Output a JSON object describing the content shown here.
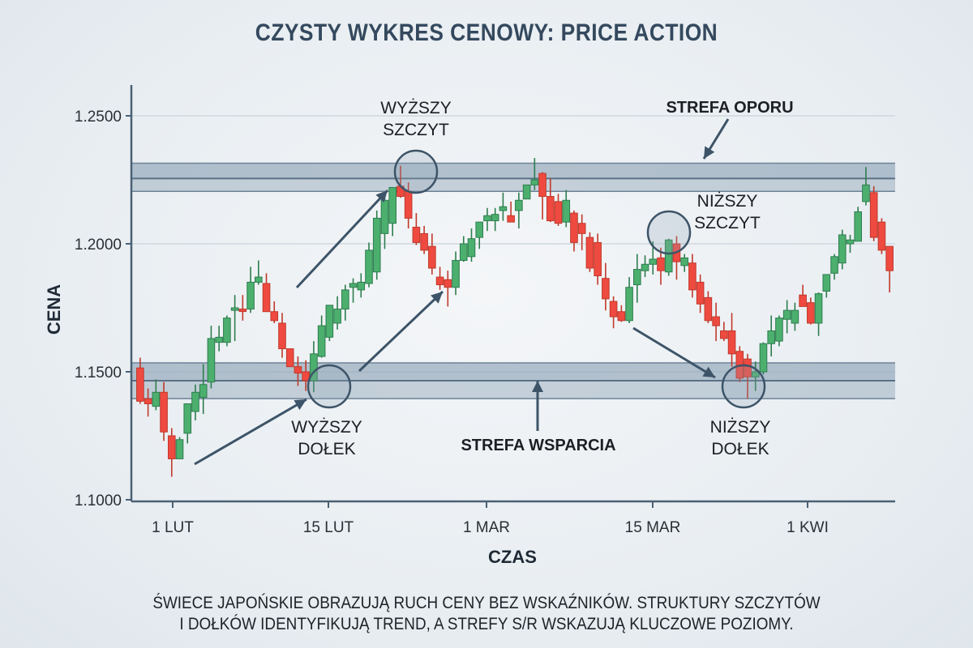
{
  "title": "CZYSTY WYKRES CENOWY: PRICE ACTION",
  "caption": {
    "line1": "ŚWIECE JAPOŃSKIE OBRAZUJĄ RUCH CENY BEZ WSKAŹNIKÓW. STRUKTURY SZCZYTÓW",
    "line2": "I DOŁKÓW IDENTYFIKUJĄ TREND, A STREFY S/R WSKAZUJĄ KLUCZOWE POZIOMY."
  },
  "colors": {
    "bullish": "#4caf6e",
    "bullish_border": "#2e7d4f",
    "bearish": "#ef4a40",
    "bearish_border": "#c0392b",
    "axis": "#4a6074",
    "zone": "#8fa3b6",
    "annotation": "#3d5468",
    "title": "#34495e"
  },
  "chart_data": {
    "type": "candlestick",
    "title": "CZYSTY WYKRES CENOWY: PRICE ACTION",
    "xlabel": "CZAS",
    "ylabel": "CENA",
    "ylim": [
      1.1,
      1.26
    ],
    "yticks": [
      "1.1000",
      "1.1500",
      "1.2000",
      "1.2500"
    ],
    "ytick_values": [
      1.1,
      1.15,
      1.2,
      1.25
    ],
    "xticks": [
      "1 LUT",
      "15 LUT",
      "1 MAR",
      "15 MAR",
      "1 KWI"
    ],
    "grid": true,
    "zones": [
      {
        "name": "STREFA OPORU",
        "type": "resistance",
        "low": 1.2205,
        "high": 1.2315,
        "mid": 1.2255
      },
      {
        "name": "STREFA WSPARCIA",
        "type": "support",
        "low": 1.1395,
        "high": 1.1535,
        "mid": 1.1465
      }
    ],
    "annotations": [
      {
        "label": "WYŻSZY SZCZYT",
        "price": 1.229
      },
      {
        "label": "WYŻSZY DOŁEK",
        "price": 1.1445
      },
      {
        "label": "NIŻSZY SZCZYT",
        "price": 1.2045
      },
      {
        "label": "NIŻSZY DOŁEK",
        "price": 1.1445
      },
      {
        "label": "STREFA OPORU"
      },
      {
        "label": "STREFA WSPARCIA"
      }
    ],
    "candles": [
      {
        "o": 1.1515,
        "h": 1.1555,
        "l": 1.1375,
        "c": 1.1385
      },
      {
        "o": 1.1395,
        "h": 1.1435,
        "l": 1.1325,
        "c": 1.1375
      },
      {
        "o": 1.1365,
        "h": 1.147,
        "l": 1.135,
        "c": 1.142
      },
      {
        "o": 1.142,
        "h": 1.146,
        "l": 1.123,
        "c": 1.1265
      },
      {
        "o": 1.125,
        "h": 1.128,
        "l": 1.109,
        "c": 1.116
      },
      {
        "o": 1.116,
        "h": 1.1245,
        "l": 1.116,
        "c": 1.1235
      },
      {
        "o": 1.126,
        "h": 1.137,
        "l": 1.122,
        "c": 1.1375
      },
      {
        "o": 1.1345,
        "h": 1.145,
        "l": 1.131,
        "c": 1.142
      },
      {
        "o": 1.14,
        "h": 1.153,
        "l": 1.1335,
        "c": 1.145
      },
      {
        "o": 1.146,
        "h": 1.168,
        "l": 1.1435,
        "c": 1.163
      },
      {
        "o": 1.1615,
        "h": 1.168,
        "l": 1.158,
        "c": 1.1635
      },
      {
        "o": 1.1615,
        "h": 1.172,
        "l": 1.16,
        "c": 1.171
      },
      {
        "o": 1.174,
        "h": 1.18,
        "l": 1.162,
        "c": 1.175
      },
      {
        "o": 1.1745,
        "h": 1.18,
        "l": 1.17,
        "c": 1.174
      },
      {
        "o": 1.1745,
        "h": 1.191,
        "l": 1.173,
        "c": 1.185
      },
      {
        "o": 1.185,
        "h": 1.1935,
        "l": 1.184,
        "c": 1.187
      },
      {
        "o": 1.1845,
        "h": 1.1885,
        "l": 1.174,
        "c": 1.1735
      },
      {
        "o": 1.1735,
        "h": 1.1775,
        "l": 1.169,
        "c": 1.17
      },
      {
        "o": 1.169,
        "h": 1.173,
        "l": 1.1555,
        "c": 1.159
      },
      {
        "o": 1.159,
        "h": 1.158,
        "l": 1.153,
        "c": 1.152
      },
      {
        "o": 1.152,
        "h": 1.156,
        "l": 1.1445,
        "c": 1.1495
      },
      {
        "o": 1.15,
        "h": 1.1545,
        "l": 1.1425,
        "c": 1.1465
      },
      {
        "o": 1.1465,
        "h": 1.162,
        "l": 1.142,
        "c": 1.157
      },
      {
        "o": 1.156,
        "h": 1.172,
        "l": 1.1555,
        "c": 1.168
      },
      {
        "o": 1.1635,
        "h": 1.1755,
        "l": 1.162,
        "c": 1.176
      },
      {
        "o": 1.169,
        "h": 1.1795,
        "l": 1.1665,
        "c": 1.1745
      },
      {
        "o": 1.1745,
        "h": 1.184,
        "l": 1.17,
        "c": 1.182
      },
      {
        "o": 1.183,
        "h": 1.1865,
        "l": 1.177,
        "c": 1.1845
      },
      {
        "o": 1.182,
        "h": 1.1885,
        "l": 1.179,
        "c": 1.185
      },
      {
        "o": 1.1845,
        "h": 1.2005,
        "l": 1.183,
        "c": 1.1975
      },
      {
        "o": 1.189,
        "h": 1.213,
        "l": 1.186,
        "c": 1.21
      },
      {
        "o": 1.204,
        "h": 1.2195,
        "l": 1.198,
        "c": 1.217
      },
      {
        "o": 1.208,
        "h": 1.221,
        "l": 1.203,
        "c": 1.222
      },
      {
        "o": 1.2225,
        "h": 1.2305,
        "l": 1.218,
        "c": 1.2185
      },
      {
        "o": 1.2205,
        "h": 1.224,
        "l": 1.206,
        "c": 1.21
      },
      {
        "o": 1.2065,
        "h": 1.212,
        "l": 1.1995,
        "c": 1.2005
      },
      {
        "o": 1.204,
        "h": 1.207,
        "l": 1.196,
        "c": 1.1975
      },
      {
        "o": 1.199,
        "h": 1.204,
        "l": 1.188,
        "c": 1.1905
      },
      {
        "o": 1.187,
        "h": 1.191,
        "l": 1.182,
        "c": 1.184
      },
      {
        "o": 1.186,
        "h": 1.1895,
        "l": 1.1755,
        "c": 1.183
      },
      {
        "o": 1.183,
        "h": 1.197,
        "l": 1.18,
        "c": 1.1935
      },
      {
        "o": 1.1935,
        "h": 1.203,
        "l": 1.193,
        "c": 1.2
      },
      {
        "o": 1.195,
        "h": 1.206,
        "l": 1.193,
        "c": 1.202
      },
      {
        "o": 1.2025,
        "h": 1.208,
        "l": 1.198,
        "c": 1.2085
      },
      {
        "o": 1.209,
        "h": 1.214,
        "l": 1.205,
        "c": 1.211
      },
      {
        "o": 1.209,
        "h": 1.214,
        "l": 1.205,
        "c": 1.2115
      },
      {
        "o": 1.213,
        "h": 1.22,
        "l": 1.209,
        "c": 1.2145
      },
      {
        "o": 1.211,
        "h": 1.2165,
        "l": 1.209,
        "c": 1.2085
      },
      {
        "o": 1.213,
        "h": 1.22,
        "l": 1.206,
        "c": 1.217
      },
      {
        "o": 1.2175,
        "h": 1.223,
        "l": 1.22,
        "c": 1.223
      },
      {
        "o": 1.223,
        "h": 1.2335,
        "l": 1.221,
        "c": 1.225
      },
      {
        "o": 1.2275,
        "h": 1.228,
        "l": 1.2095,
        "c": 1.2185
      },
      {
        "o": 1.2185,
        "h": 1.2255,
        "l": 1.2085,
        "c": 1.209
      },
      {
        "o": 1.2165,
        "h": 1.2195,
        "l": 1.207,
        "c": 1.208
      },
      {
        "o": 1.2085,
        "h": 1.221,
        "l": 1.2065,
        "c": 1.217
      },
      {
        "o": 1.212,
        "h": 1.213,
        "l": 1.197,
        "c": 1.2005
      },
      {
        "o": 1.208,
        "h": 1.2115,
        "l": 1.1975,
        "c": 1.204
      },
      {
        "o": 1.2025,
        "h": 1.2045,
        "l": 1.189,
        "c": 1.1905
      },
      {
        "o": 1.2005,
        "h": 1.204,
        "l": 1.184,
        "c": 1.1875
      },
      {
        "o": 1.1865,
        "h": 1.1925,
        "l": 1.174,
        "c": 1.1785
      },
      {
        "o": 1.1775,
        "h": 1.1795,
        "l": 1.167,
        "c": 1.1715
      },
      {
        "o": 1.1735,
        "h": 1.176,
        "l": 1.1695,
        "c": 1.17
      },
      {
        "o": 1.17,
        "h": 1.187,
        "l": 1.169,
        "c": 1.183
      },
      {
        "o": 1.184,
        "h": 1.196,
        "l": 1.177,
        "c": 1.19
      },
      {
        "o": 1.1895,
        "h": 1.1955,
        "l": 1.187,
        "c": 1.192
      },
      {
        "o": 1.192,
        "h": 1.201,
        "l": 1.188,
        "c": 1.194
      },
      {
        "o": 1.1945,
        "h": 1.1985,
        "l": 1.184,
        "c": 1.1895
      },
      {
        "o": 1.189,
        "h": 1.202,
        "l": 1.1875,
        "c": 1.2015
      },
      {
        "o": 1.2,
        "h": 1.203,
        "l": 1.186,
        "c": 1.193
      },
      {
        "o": 1.1915,
        "h": 1.196,
        "l": 1.189,
        "c": 1.1945
      },
      {
        "o": 1.1925,
        "h": 1.196,
        "l": 1.179,
        "c": 1.182
      },
      {
        "o": 1.185,
        "h": 1.188,
        "l": 1.173,
        "c": 1.1765
      },
      {
        "o": 1.179,
        "h": 1.1815,
        "l": 1.169,
        "c": 1.17
      },
      {
        "o": 1.1715,
        "h": 1.177,
        "l": 1.162,
        "c": 1.168
      },
      {
        "o": 1.166,
        "h": 1.1695,
        "l": 1.162,
        "c": 1.163
      },
      {
        "o": 1.166,
        "h": 1.173,
        "l": 1.152,
        "c": 1.157
      },
      {
        "o": 1.158,
        "h": 1.16,
        "l": 1.146,
        "c": 1.1475
      },
      {
        "o": 1.155,
        "h": 1.157,
        "l": 1.1395,
        "c": 1.148
      },
      {
        "o": 1.148,
        "h": 1.154,
        "l": 1.1425,
        "c": 1.15
      },
      {
        "o": 1.15,
        "h": 1.1615,
        "l": 1.149,
        "c": 1.161
      },
      {
        "o": 1.161,
        "h": 1.172,
        "l": 1.156,
        "c": 1.166
      },
      {
        "o": 1.162,
        "h": 1.172,
        "l": 1.16,
        "c": 1.171
      },
      {
        "o": 1.1705,
        "h": 1.178,
        "l": 1.165,
        "c": 1.174
      },
      {
        "o": 1.169,
        "h": 1.177,
        "l": 1.166,
        "c": 1.174
      },
      {
        "o": 1.18,
        "h": 1.184,
        "l": 1.1775,
        "c": 1.1755
      },
      {
        "o": 1.177,
        "h": 1.179,
        "l": 1.1685,
        "c": 1.169
      },
      {
        "o": 1.169,
        "h": 1.181,
        "l": 1.164,
        "c": 1.1805
      },
      {
        "o": 1.1815,
        "h": 1.187,
        "l": 1.179,
        "c": 1.188
      },
      {
        "o": 1.1885,
        "h": 1.196,
        "l": 1.186,
        "c": 1.195
      },
      {
        "o": 1.1925,
        "h": 1.2055,
        "l": 1.19,
        "c": 1.2035
      },
      {
        "o": 1.2,
        "h": 1.2035,
        "l": 1.1965,
        "c": 1.2015
      },
      {
        "o": 1.201,
        "h": 1.2145,
        "l": 1.202,
        "c": 1.2125
      },
      {
        "o": 1.2165,
        "h": 1.23,
        "l": 1.215,
        "c": 1.223
      },
      {
        "o": 1.22,
        "h": 1.2225,
        "l": 1.201,
        "c": 1.2025
      },
      {
        "o": 1.2085,
        "h": 1.21,
        "l": 1.196,
        "c": 1.1975
      },
      {
        "o": 1.199,
        "h": 1.199,
        "l": 1.181,
        "c": 1.1895
      }
    ]
  }
}
